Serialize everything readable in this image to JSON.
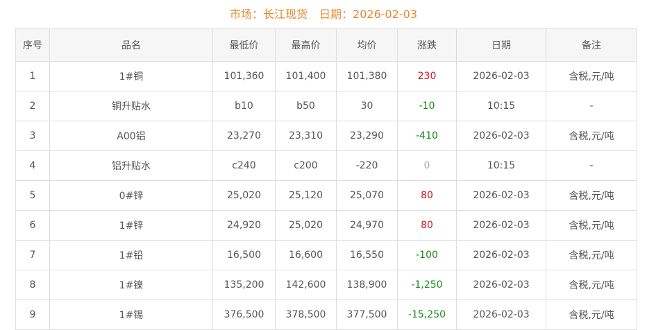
{
  "header": {
    "market": "市场：长江现货",
    "date": "日期：2026-02-03"
  },
  "colors": {
    "title": "#e8872e",
    "up": "#d6141d",
    "down": "#168a16",
    "flat": "#aaaaaa"
  },
  "table": {
    "columns": [
      "序号",
      "品名",
      "最低价",
      "最高价",
      "均价",
      "涨跌",
      "日期",
      "备注"
    ],
    "rows": [
      {
        "no": "1",
        "name": "1#铜",
        "low": "101,360",
        "high": "101,400",
        "avg": "101,380",
        "change": "230",
        "trend": "up",
        "date": "2026-02-03",
        "note": "含税,元/吨"
      },
      {
        "no": "2",
        "name": "铜升贴水",
        "low": "b10",
        "high": "b50",
        "avg": "30",
        "change": "-10",
        "trend": "down",
        "date": "10:15",
        "note": "-"
      },
      {
        "no": "3",
        "name": "A00铝",
        "low": "23,270",
        "high": "23,310",
        "avg": "23,290",
        "change": "-410",
        "trend": "down",
        "date": "2026-02-03",
        "note": "含税,元/吨"
      },
      {
        "no": "4",
        "name": "铝升贴水",
        "low": "c240",
        "high": "c200",
        "avg": "-220",
        "change": "0",
        "trend": "flat",
        "date": "10:15",
        "note": "-"
      },
      {
        "no": "5",
        "name": "0#锌",
        "low": "25,020",
        "high": "25,120",
        "avg": "25,070",
        "change": "80",
        "trend": "up",
        "date": "2026-02-03",
        "note": "含税,元/吨"
      },
      {
        "no": "6",
        "name": "1#锌",
        "low": "24,920",
        "high": "25,020",
        "avg": "24,970",
        "change": "80",
        "trend": "up",
        "date": "2026-02-03",
        "note": "含税,元/吨"
      },
      {
        "no": "7",
        "name": "1#铅",
        "low": "16,500",
        "high": "16,600",
        "avg": "16,550",
        "change": "-100",
        "trend": "down",
        "date": "2026-02-03",
        "note": "含税,元/吨"
      },
      {
        "no": "8",
        "name": "1#镍",
        "low": "135,200",
        "high": "142,600",
        "avg": "138,900",
        "change": "-1,250",
        "trend": "down",
        "date": "2026-02-03",
        "note": "含税,元/吨"
      },
      {
        "no": "9",
        "name": "1#锡",
        "low": "376,500",
        "high": "378,500",
        "avg": "377,500",
        "change": "-15,250",
        "trend": "down",
        "date": "2026-02-03",
        "note": "含税,元/吨"
      }
    ]
  }
}
